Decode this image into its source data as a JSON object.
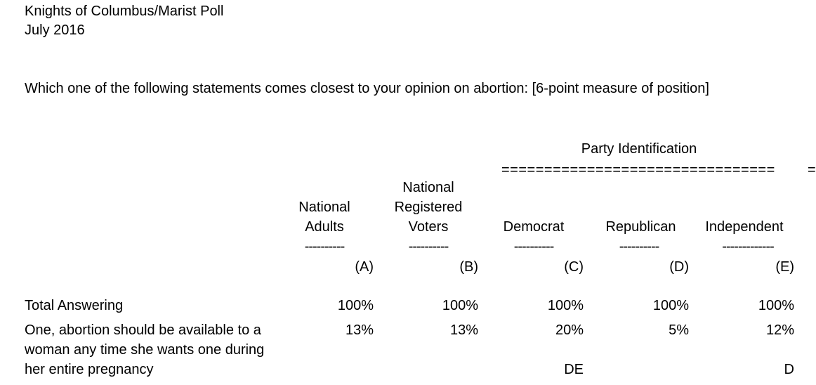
{
  "header": {
    "organization": "Knights of Columbus/Marist Poll",
    "date": "July 2016",
    "question": "Which one of the following statements comes closest to your opinion on abortion: [6-point measure of position]"
  },
  "group": {
    "label": "Party Identification",
    "rule": "================================",
    "rule_fragment": "="
  },
  "columns": [
    {
      "label": "National Adults",
      "dashes": "----------",
      "letter": "(A)"
    },
    {
      "label": "National Registered Voters",
      "dashes": "----------",
      "letter": "(B)"
    },
    {
      "label": "Democrat",
      "dashes": "----------",
      "letter": "(C)"
    },
    {
      "label": "Republican",
      "dashes": "----------",
      "letter": "(D)"
    },
    {
      "label": "Independent",
      "dashes": "-------------",
      "letter": "(E)"
    }
  ],
  "rows": [
    {
      "label": "Total Answering",
      "values": [
        "100%",
        "100%",
        "100%",
        "100%",
        "100%"
      ]
    },
    {
      "label": "One, abortion should be available to a woman any time she wants one during her entire pregnancy",
      "values": [
        "13%",
        "13%",
        "20%",
        "5%",
        "12%"
      ],
      "significance": [
        "",
        "",
        "DE",
        "",
        "D"
      ]
    }
  ]
}
